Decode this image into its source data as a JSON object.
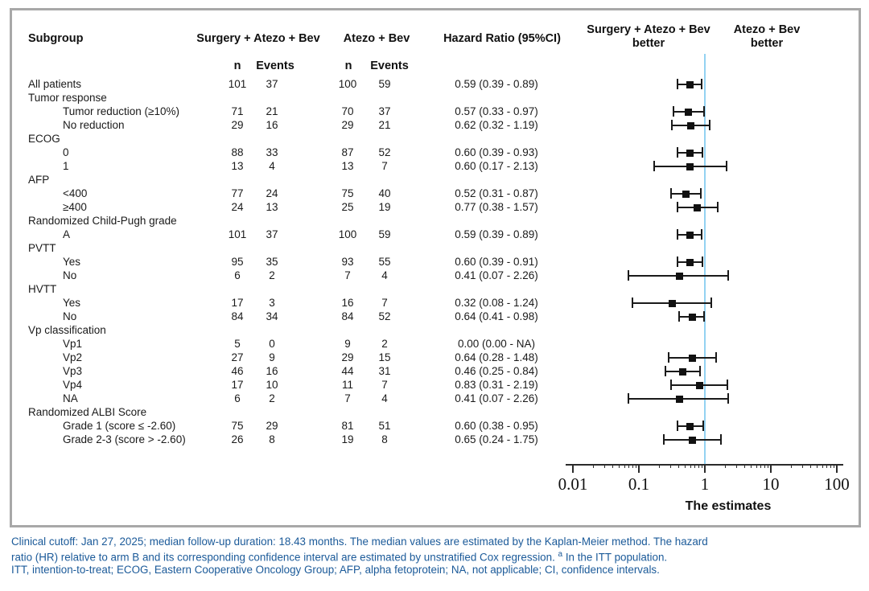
{
  "colors": {
    "reference_line": "#93d2f2",
    "panel_border": "#a8a8a8",
    "footnote_text": "#1b5a99",
    "marker": "#111111"
  },
  "header": {
    "subgroup": "Subgroup",
    "arm1": "Surgery + Atezo + Bev",
    "arm2": "Atezo + Bev",
    "n1": "n",
    "events1": "Events",
    "n2": "n",
    "events2": "Events",
    "hazard_ratio": "Hazard Ratio (95%CI)",
    "left_better_line1": "Surgery + Atezo + Bev",
    "left_better_line2": "better",
    "right_better_line1": "Atezo + Bev",
    "right_better_line2": "better"
  },
  "footnote": {
    "line1": "Clinical cutoff: Jan 27, 2025; median follow-up duration: 18.43 months. The median values are estimated by the Kaplan-Meier method. The hazard",
    "line2_pre": "ratio (HR) relative to arm B and its corresponding confidence interval are estimated by unstratified Cox regression. ",
    "line2_sup": "a",
    "line2_post": " In the ITT population.",
    "line3": "ITT, intention-to-treat; ECOG, Eastern Cooperative Oncology Group; AFP, alpha fetoprotein; NA, not applicable; CI, confidence intervals."
  },
  "chart_data": {
    "type": "scatter",
    "variant": "forest-plot",
    "xscale": "log",
    "xlim": [
      0.01,
      100
    ],
    "xticks": [
      0.01,
      0.1,
      1,
      10,
      100
    ],
    "xtick_labels": [
      "0.01",
      "0.1",
      "1",
      "10",
      "100"
    ],
    "xlabel": "The estimates",
    "reference_line_x": 1,
    "legend_left": "Surgery + Atezo + Bev better",
    "legend_right": "Atezo + Bev better",
    "rows": [
      {
        "label": "All patients",
        "indent": 0,
        "n1": "101",
        "e1": "37",
        "n2": "100",
        "e2": "59",
        "hr": "0.59 (0.39 - 0.89)",
        "est": 0.59,
        "lo": 0.39,
        "hi": 0.89
      },
      {
        "label": "Tumor response",
        "indent": 0,
        "group": true
      },
      {
        "label": "Tumor reduction (≥10%)",
        "indent": 1,
        "n1": "71",
        "e1": "21",
        "n2": "70",
        "e2": "37",
        "hr": "0.57 (0.33 - 0.97)",
        "est": 0.57,
        "lo": 0.33,
        "hi": 0.97
      },
      {
        "label": "No reduction",
        "indent": 1,
        "n1": "29",
        "e1": "16",
        "n2": "29",
        "e2": "21",
        "hr": "0.62 (0.32 - 1.19)",
        "est": 0.62,
        "lo": 0.32,
        "hi": 1.19
      },
      {
        "label": "ECOG",
        "indent": 0,
        "group": true
      },
      {
        "label": "0",
        "indent": 1,
        "n1": "88",
        "e1": "33",
        "n2": "87",
        "e2": "52",
        "hr": "0.60 (0.39 - 0.93)",
        "est": 0.6,
        "lo": 0.39,
        "hi": 0.93
      },
      {
        "label": "1",
        "indent": 1,
        "n1": "13",
        "e1": "4",
        "n2": "13",
        "e2": "7",
        "hr": "0.60 (0.17 - 2.13)",
        "est": 0.6,
        "lo": 0.17,
        "hi": 2.13
      },
      {
        "label": "AFP",
        "indent": 0,
        "group": true
      },
      {
        "label": "<400",
        "indent": 1,
        "n1": "77",
        "e1": "24",
        "n2": "75",
        "e2": "40",
        "hr": "0.52 (0.31 - 0.87)",
        "est": 0.52,
        "lo": 0.31,
        "hi": 0.87
      },
      {
        "label": "≥400",
        "indent": 1,
        "n1": "24",
        "e1": "13",
        "n2": "25",
        "e2": "19",
        "hr": "0.77 (0.38 - 1.57)",
        "est": 0.77,
        "lo": 0.38,
        "hi": 1.57
      },
      {
        "label": "Randomized Child-Pugh grade",
        "indent": 0,
        "group": true
      },
      {
        "label": "A",
        "indent": 1,
        "n1": "101",
        "e1": "37",
        "n2": "100",
        "e2": "59",
        "hr": "0.59 (0.39 - 0.89)",
        "est": 0.59,
        "lo": 0.39,
        "hi": 0.89
      },
      {
        "label": "PVTT",
        "indent": 0,
        "group": true
      },
      {
        "label": "Yes",
        "indent": 1,
        "n1": "95",
        "e1": "35",
        "n2": "93",
        "e2": "55",
        "hr": "0.60 (0.39 - 0.91)",
        "est": 0.6,
        "lo": 0.39,
        "hi": 0.91
      },
      {
        "label": "No",
        "indent": 1,
        "n1": "6",
        "e1": "2",
        "n2": "7",
        "e2": "4",
        "hr": "0.41 (0.07 - 2.26)",
        "est": 0.41,
        "lo": 0.07,
        "hi": 2.26
      },
      {
        "label": "HVTT",
        "indent": 0,
        "group": true
      },
      {
        "label": "Yes",
        "indent": 1,
        "n1": "17",
        "e1": "3",
        "n2": "16",
        "e2": "7",
        "hr": "0.32 (0.08 - 1.24)",
        "est": 0.32,
        "lo": 0.08,
        "hi": 1.24
      },
      {
        "label": "No",
        "indent": 1,
        "n1": "84",
        "e1": "34",
        "n2": "84",
        "e2": "52",
        "hr": "0.64 (0.41 - 0.98)",
        "est": 0.64,
        "lo": 0.41,
        "hi": 0.98
      },
      {
        "label": "Vp classification",
        "indent": 0,
        "group": true
      },
      {
        "label": "Vp1",
        "indent": 1,
        "n1": "5",
        "e1": "0",
        "n2": "9",
        "e2": "2",
        "hr": "0.00 (0.00 - NA)",
        "est": null,
        "lo": null,
        "hi": null
      },
      {
        "label": "Vp2",
        "indent": 1,
        "n1": "27",
        "e1": "9",
        "n2": "29",
        "e2": "15",
        "hr": "0.64 (0.28 - 1.48)",
        "est": 0.64,
        "lo": 0.28,
        "hi": 1.48
      },
      {
        "label": "Vp3",
        "indent": 1,
        "n1": "46",
        "e1": "16",
        "n2": "44",
        "e2": "31",
        "hr": "0.46 (0.25 - 0.84)",
        "est": 0.46,
        "lo": 0.25,
        "hi": 0.84
      },
      {
        "label": "Vp4",
        "indent": 1,
        "n1": "17",
        "e1": "10",
        "n2": "11",
        "e2": "7",
        "hr": "0.83 (0.31 - 2.19)",
        "est": 0.83,
        "lo": 0.31,
        "hi": 2.19
      },
      {
        "label": "NA",
        "indent": 1,
        "n1": "6",
        "e1": "2",
        "n2": "7",
        "e2": "4",
        "hr": "0.41 (0.07 - 2.26)",
        "est": 0.41,
        "lo": 0.07,
        "hi": 2.26
      },
      {
        "label": "Randomized ALBI Score",
        "indent": 0,
        "group": true
      },
      {
        "label": "Grade 1 (score ≤ -2.60)",
        "indent": 1,
        "n1": "75",
        "e1": "29",
        "n2": "81",
        "e2": "51",
        "hr": "0.60 (0.38 - 0.95)",
        "est": 0.6,
        "lo": 0.38,
        "hi": 0.95
      },
      {
        "label": "Grade 2-3 (score > -2.60)",
        "indent": 1,
        "n1": "26",
        "e1": "8",
        "n2": "19",
        "e2": "8",
        "hr": "0.65 (0.24 - 1.75)",
        "est": 0.65,
        "lo": 0.24,
        "hi": 1.75
      }
    ]
  }
}
